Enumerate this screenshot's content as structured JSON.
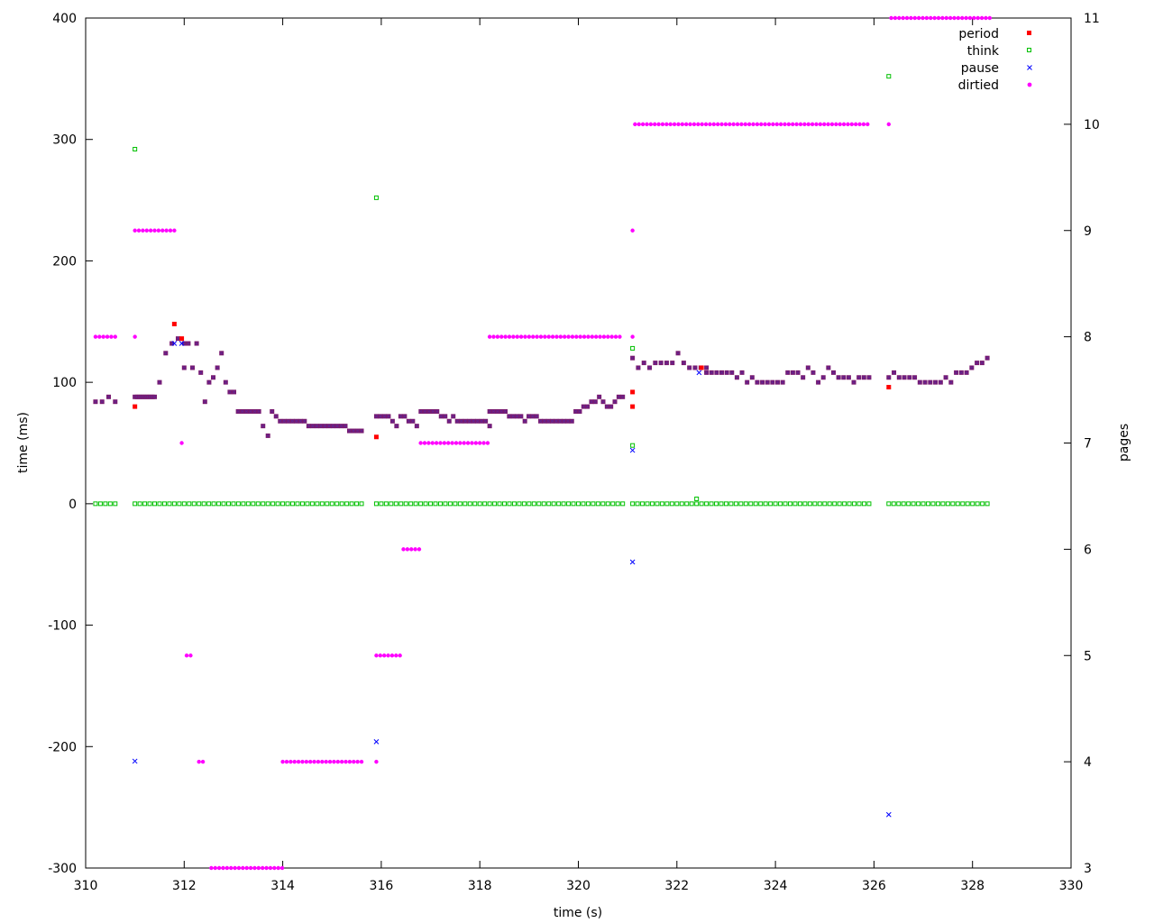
{
  "chart_data": {
    "type": "scatter",
    "title": "",
    "xlabel": "time (s)",
    "ylabel": "time (ms)",
    "y2label": "pages",
    "xlim": [
      310,
      330
    ],
    "ylim": [
      -300,
      400
    ],
    "y2lim": [
      3,
      11
    ],
    "xticks": [
      "310",
      "312",
      "314",
      "316",
      "318",
      "320",
      "322",
      "324",
      "326",
      "328",
      "330"
    ],
    "yticks": [
      "-300",
      "-200",
      "-100",
      "0",
      "100",
      "200",
      "300",
      "400"
    ],
    "y2ticks": [
      "3",
      "4",
      "5",
      "6",
      "7",
      "8",
      "9",
      "10",
      "11"
    ],
    "grid": false,
    "legend_position": "top-right",
    "colors": {
      "period": "#ff0000",
      "think": "#00c000",
      "pause": "#0000ff",
      "dirtied": "#ff00ff",
      "overlap": "#7a1a6e"
    },
    "series": [
      {
        "name": "period",
        "marker": "filled-square",
        "axis": "y",
        "points": [
          [
            311.0,
            80
          ],
          [
            311.8,
            148
          ],
          [
            311.95,
            136
          ],
          [
            315.9,
            55
          ],
          [
            321.1,
            92
          ],
          [
            321.1,
            80
          ],
          [
            322.5,
            112
          ],
          [
            326.3,
            96
          ]
        ],
        "segments": [
          {
            "x0": 310.2,
            "x1": 310.6,
            "y": [
              84,
              84,
              88,
              84
            ]
          },
          {
            "x0": 311.0,
            "x1": 311.4,
            "y": [
              88,
              88,
              88,
              88,
              88,
              88,
              88,
              88,
              88,
              88
            ]
          },
          {
            "x0": 311.5,
            "x1": 312.0,
            "y": [
              100,
              124,
              132,
              136,
              132
            ]
          },
          {
            "x0": 312.0,
            "x1": 313.6,
            "y": [
              112,
              132,
              112,
              132,
              108,
              84,
              100,
              104,
              112,
              124,
              100,
              92,
              92,
              76,
              76,
              76,
              76,
              76,
              76,
              64
            ]
          },
          {
            "x0": 313.7,
            "x1": 315.6,
            "y": [
              56,
              76,
              72,
              68,
              68,
              68,
              68,
              68,
              68,
              68,
              64,
              64,
              64,
              64,
              64,
              64,
              64,
              64,
              64,
              64,
              60,
              60,
              60,
              60
            ]
          },
          {
            "x0": 315.9,
            "x1": 318.2,
            "y": [
              72,
              72,
              72,
              72,
              68,
              64,
              72,
              72,
              68,
              68,
              64,
              76,
              76,
              76,
              76,
              76,
              72,
              72,
              68,
              72,
              68,
              68,
              68,
              68,
              68,
              68,
              68,
              68,
              64
            ]
          },
          {
            "x0": 318.2,
            "x1": 320.9,
            "y": [
              76,
              76,
              76,
              76,
              76,
              72,
              72,
              72,
              72,
              68,
              72,
              72,
              72,
              68,
              68,
              68,
              68,
              68,
              68,
              68,
              68,
              68,
              76,
              76,
              80,
              80,
              84,
              84,
              88,
              84,
              80,
              80,
              84,
              88,
              88
            ]
          },
          {
            "x0": 321.1,
            "x1": 322.6,
            "y": [
              120,
              112,
              116,
              112,
              116,
              116,
              116,
              116,
              124,
              116,
              112,
              112,
              112,
              108
            ]
          },
          {
            "x0": 322.6,
            "x1": 325.9,
            "y": [
              112,
              108,
              108,
              108,
              108,
              108,
              104,
              108,
              100,
              104,
              100,
              100,
              100,
              100,
              100,
              100,
              108,
              108,
              108,
              104,
              112,
              108,
              100,
              104,
              112,
              108,
              104,
              104,
              104,
              100,
              104,
              104,
              104
            ]
          },
          {
            "x0": 326.3,
            "x1": 328.3,
            "y": [
              104,
              108,
              104,
              104,
              104,
              104,
              100,
              100,
              100,
              100,
              100,
              104,
              100,
              108,
              108,
              108,
              112,
              116,
              116,
              120
            ]
          }
        ]
      },
      {
        "name": "think",
        "marker": "open-square",
        "axis": "y",
        "points": [
          [
            311.0,
            292
          ],
          [
            315.9,
            252
          ],
          [
            321.1,
            128
          ],
          [
            321.1,
            48
          ],
          [
            322.4,
            4
          ],
          [
            326.3,
            352
          ]
        ],
        "zero_ranges": [
          [
            310.2,
            310.6
          ],
          [
            311.0,
            315.6
          ],
          [
            315.9,
            320.9
          ],
          [
            321.1,
            325.9
          ],
          [
            326.3,
            328.3
          ]
        ],
        "zero_spacing": 0.1
      },
      {
        "name": "pause",
        "marker": "cross",
        "axis": "y",
        "points": [
          [
            311.0,
            -212
          ],
          [
            311.8,
            132
          ],
          [
            311.95,
            132
          ],
          [
            315.9,
            -196
          ],
          [
            321.1,
            44
          ],
          [
            321.1,
            -48
          ],
          [
            322.45,
            108
          ],
          [
            326.3,
            -256
          ]
        ]
      },
      {
        "name": "dirtied",
        "marker": "filled-circle",
        "axis": "y2",
        "ranges": [
          {
            "x0": 310.2,
            "x1": 310.6,
            "y": 8
          },
          {
            "x0": 311.0,
            "x1": 311.8,
            "y": 9
          },
          {
            "x0": 312.05,
            "x1": 312.2,
            "y": 5
          },
          {
            "x0": 312.3,
            "x1": 312.45,
            "y": 4
          },
          {
            "x0": 312.55,
            "x1": 314.0,
            "y": 3
          },
          {
            "x0": 314.0,
            "x1": 315.6,
            "y": 4
          },
          {
            "x0": 315.9,
            "x1": 316.45,
            "y": 5
          },
          {
            "x0": 316.45,
            "x1": 316.8,
            "y": 6
          },
          {
            "x0": 316.8,
            "x1": 318.2,
            "y": 7
          },
          {
            "x0": 318.2,
            "x1": 320.9,
            "y": 8
          },
          {
            "x0": 321.15,
            "x1": 325.9,
            "y": 10
          },
          {
            "x0": 326.35,
            "x1": 328.35,
            "y": 11
          }
        ],
        "points": [
          [
            311.0,
            8
          ],
          [
            311.95,
            7
          ],
          [
            315.9,
            4
          ],
          [
            321.1,
            9
          ],
          [
            321.1,
            8
          ],
          [
            326.3,
            10
          ]
        ],
        "spacing": 0.08
      }
    ]
  }
}
